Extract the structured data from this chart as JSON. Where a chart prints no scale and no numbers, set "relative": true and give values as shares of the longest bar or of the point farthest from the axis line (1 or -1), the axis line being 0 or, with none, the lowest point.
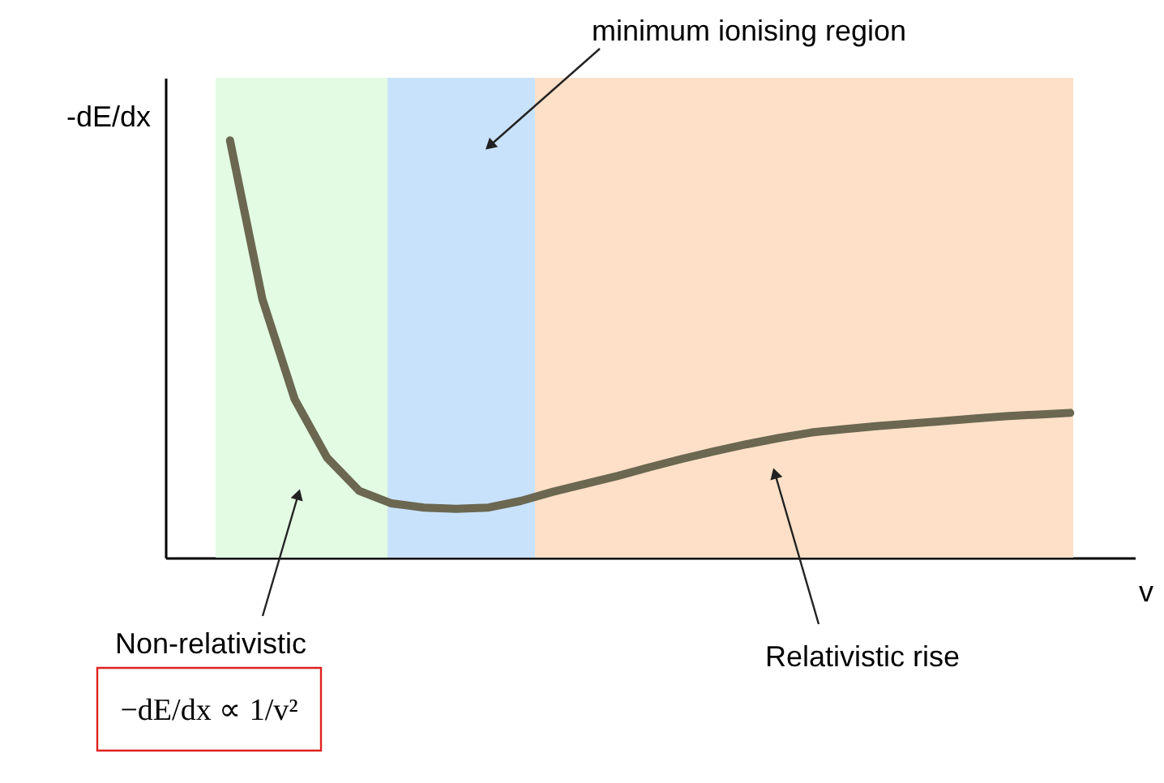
{
  "chart_data": {
    "type": "line",
    "relative": true,
    "xlabel": "v",
    "ylabel": "-dE/dx",
    "line_style": "solid",
    "categories": [
      null,
      null,
      null,
      null,
      null,
      null,
      null,
      null,
      null,
      null,
      null,
      null,
      null,
      null,
      null,
      null,
      null,
      null,
      null,
      null,
      null,
      null,
      null,
      null,
      null,
      null,
      null,
      null,
      null,
      null,
      null
    ],
    "series": [
      {
        "color": "#6b6750",
        "values": [
          null,
          null,
          1.0,
          0.62,
          0.38,
          0.24,
          0.16,
          0.13,
          0.12,
          0.117,
          0.12,
          0.136,
          0.158,
          0.177,
          0.196,
          0.217,
          0.237,
          0.255,
          0.272,
          0.287,
          0.3,
          0.308,
          0.315,
          0.321,
          0.327,
          0.333,
          0.339,
          0.343,
          0.347,
          null,
          null
        ]
      }
    ],
    "annotations": [
      "minimum ionising region",
      "Non-relativistic",
      "Relativistic rise",
      "−dE/dx ∝ 1/v²"
    ]
  }
}
